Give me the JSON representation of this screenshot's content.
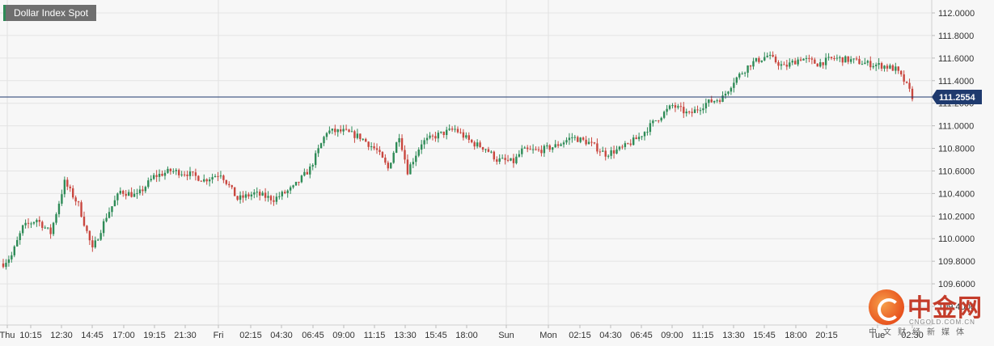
{
  "symbol": {
    "label": "Dollar Index Spot",
    "accent": "#2e8b57"
  },
  "last_price": {
    "value": "111.2554",
    "color": "#1f3a6e"
  },
  "watermark": {
    "name": "中金网",
    "url": "CNGOLD.COM.CN",
    "tagline": "中文财经新媒体"
  },
  "colors": {
    "up": "#2e8b57",
    "down": "#c9473f",
    "grid": "#e4e4e4",
    "background": "#f7f7f7"
  },
  "chart_data": {
    "type": "candlestick",
    "ylim": [
      109.4,
      112.0
    ],
    "y_ticks": [
      "112.0000",
      "111.8000",
      "111.6000",
      "111.4000",
      "111.2000",
      "111.0000",
      "110.8000",
      "110.6000",
      "110.4000",
      "110.2000",
      "110.0000",
      "109.8000",
      "109.6000",
      "109.4000"
    ],
    "x_ticks": [
      "Thu",
      "10:15",
      "12:30",
      "14:45",
      "17:00",
      "19:15",
      "21:30",
      "Fri",
      "02:15",
      "04:30",
      "06:45",
      "09:00",
      "11:15",
      "13:30",
      "15:45",
      "18:00",
      "Sun",
      "Mon",
      "02:15",
      "04:30",
      "06:45",
      "09:00",
      "11:15",
      "13:30",
      "15:45",
      "18:00",
      "20:15",
      "Tue",
      "02:30"
    ],
    "day_separators": [
      "Thu",
      "Fri",
      "Sun",
      "Mon",
      "Tue"
    ],
    "price_line": 111.2554,
    "anchors": [
      [
        0,
        109.78
      ],
      [
        3,
        109.85
      ],
      [
        7,
        110.1
      ],
      [
        12,
        110.17
      ],
      [
        17,
        110.05
      ],
      [
        22,
        110.5
      ],
      [
        27,
        110.3
      ],
      [
        32,
        109.9
      ],
      [
        37,
        110.2
      ],
      [
        42,
        110.42
      ],
      [
        48,
        110.38
      ],
      [
        54,
        110.55
      ],
      [
        60,
        110.6
      ],
      [
        66,
        110.58
      ],
      [
        72,
        110.52
      ],
      [
        78,
        110.58
      ],
      [
        84,
        110.35
      ],
      [
        90,
        110.4
      ],
      [
        97,
        110.35
      ],
      [
        104,
        110.45
      ],
      [
        110,
        110.62
      ],
      [
        116,
        110.95
      ],
      [
        122,
        110.95
      ],
      [
        128,
        110.9
      ],
      [
        134,
        110.78
      ],
      [
        138,
        110.62
      ],
      [
        142,
        110.92
      ],
      [
        145,
        110.6
      ],
      [
        150,
        110.85
      ],
      [
        156,
        110.92
      ],
      [
        162,
        110.97
      ],
      [
        168,
        110.85
      ],
      [
        173,
        110.8
      ],
      [
        177,
        110.7
      ],
      [
        183,
        110.68
      ],
      [
        186,
        110.78
      ],
      [
        192,
        110.78
      ],
      [
        198,
        110.82
      ],
      [
        204,
        110.9
      ],
      [
        210,
        110.85
      ],
      [
        216,
        110.75
      ],
      [
        222,
        110.8
      ],
      [
        228,
        110.9
      ],
      [
        234,
        111.05
      ],
      [
        240,
        111.18
      ],
      [
        246,
        111.1
      ],
      [
        252,
        111.2
      ],
      [
        258,
        111.25
      ],
      [
        262,
        111.4
      ],
      [
        268,
        111.55
      ],
      [
        274,
        111.62
      ],
      [
        280,
        111.52
      ],
      [
        286,
        111.6
      ],
      [
        292,
        111.55
      ],
      [
        298,
        111.6
      ],
      [
        304,
        111.58
      ],
      [
        310,
        111.55
      ],
      [
        316,
        111.53
      ],
      [
        320,
        111.5
      ],
      [
        323,
        111.4
      ],
      [
        326,
        111.26
      ]
    ]
  }
}
